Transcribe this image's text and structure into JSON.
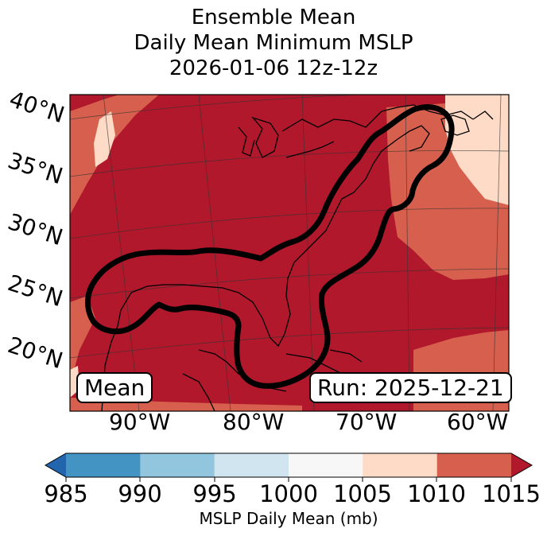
{
  "title": {
    "line1": "Ensemble Mean",
    "line2": "Daily Mean Minimum MSLP",
    "line3": "2026-01-06 12z-12z"
  },
  "map": {
    "lat_labels": [
      "40°N",
      "35°N",
      "30°N",
      "25°N",
      "20°N"
    ],
    "lon_labels": [
      "90°W",
      "80°W",
      "70°W",
      "60°W"
    ],
    "mean_box": "Mean",
    "run_box": "Run: 2025-12-21",
    "colors": {
      "dark_red": "#b2182b",
      "mid_red": "#d6604d",
      "light_peach": "#fddbc7",
      "contour": "#000000",
      "coast": "#000000"
    }
  },
  "colorbar": {
    "ticks": [
      "985",
      "990",
      "995",
      "1000",
      "1005",
      "1010",
      "1015"
    ],
    "label": "MSLP Daily Mean (mb)",
    "bins": [
      {
        "range": "<985",
        "color": "#2166ac"
      },
      {
        "range": "985-990",
        "color": "#4393c3"
      },
      {
        "range": "990-995",
        "color": "#92c5de"
      },
      {
        "range": "995-1000",
        "color": "#d1e5f0"
      },
      {
        "range": "1000-1005",
        "color": "#f7f7f7"
      },
      {
        "range": "1005-1010",
        "color": "#fddbc7"
      },
      {
        "range": "1010-1015",
        "color": "#d6604d"
      },
      {
        "range": ">1015",
        "color": "#b2182b"
      }
    ]
  }
}
